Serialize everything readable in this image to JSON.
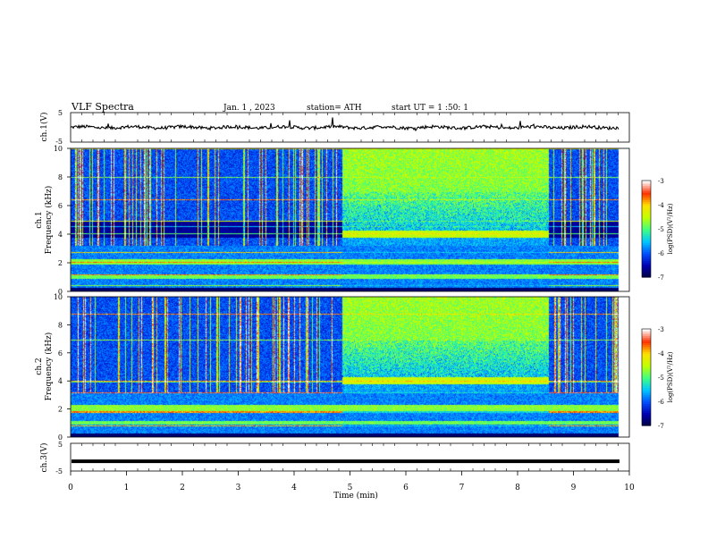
{
  "header": {
    "title": "VLF Spectra",
    "date": "Jan. 1 , 2023",
    "station": "station= ATH",
    "start": "start UT = 1 :50: 1"
  },
  "colors": {
    "colormap": [
      "#000040",
      "#0000b0",
      "#0050ff",
      "#00c8ff",
      "#40ff80",
      "#c0ff00",
      "#ffe000",
      "#ff3000",
      "#ffffff"
    ],
    "trace": "#000000",
    "axis": "#000000"
  },
  "chart_data": [
    {
      "type": "line",
      "ylabel": "ch.1(V)",
      "xlim": [
        0,
        10
      ],
      "ylim": [
        -5,
        5
      ],
      "yticks": [
        "5",
        "-5"
      ],
      "description_values": {
        "baseline": 0,
        "noise_amplitude": 0.6
      }
    },
    {
      "type": "heatmap",
      "ylabel": "ch.1\nFrequency (kHz)",
      "ylabel_lines": [
        "ch.1",
        "Frequency (kHz)"
      ],
      "xlim": [
        0,
        10
      ],
      "ylim": [
        0,
        10
      ],
      "yticks": [
        "0",
        "2",
        "4",
        "6",
        "8",
        "10"
      ],
      "colorbar": {
        "label": "log(PSD)(V²/Hz)",
        "range": [
          -7,
          -3
        ],
        "ticks": [
          "-3",
          "-4",
          "-5",
          "-6",
          "-7"
        ]
      },
      "enhanced_interval_min": [
        4.85,
        8.55
      ],
      "gap_band_khz": [
        3.8,
        4.9
      ]
    },
    {
      "type": "heatmap",
      "ylabel_lines": [
        "ch.2",
        "Frequency (kHz)"
      ],
      "xlim": [
        0,
        10
      ],
      "ylim": [
        0,
        10
      ],
      "yticks": [
        "0",
        "2",
        "4",
        "6",
        "8",
        "10"
      ],
      "colorbar": {
        "label": "log(PSD)(V²/Hz)",
        "range": [
          -7,
          -3
        ],
        "ticks": [
          "-3",
          "-4",
          "-5",
          "-6",
          "-7"
        ]
      },
      "enhanced_interval_min": [
        4.85,
        8.55
      ]
    },
    {
      "type": "line",
      "ylabel": "ch.3(V)",
      "xlim": [
        0,
        10
      ],
      "ylim": [
        -5,
        5
      ],
      "yticks": [
        "5",
        "-5"
      ],
      "values": {
        "constant_level": -1.5
      }
    }
  ],
  "xaxis": {
    "label": "Time (min)",
    "ticks": [
      "0",
      "1",
      "2",
      "3",
      "4",
      "5",
      "6",
      "7",
      "8",
      "9",
      "10"
    ],
    "data_end": 9.8
  }
}
